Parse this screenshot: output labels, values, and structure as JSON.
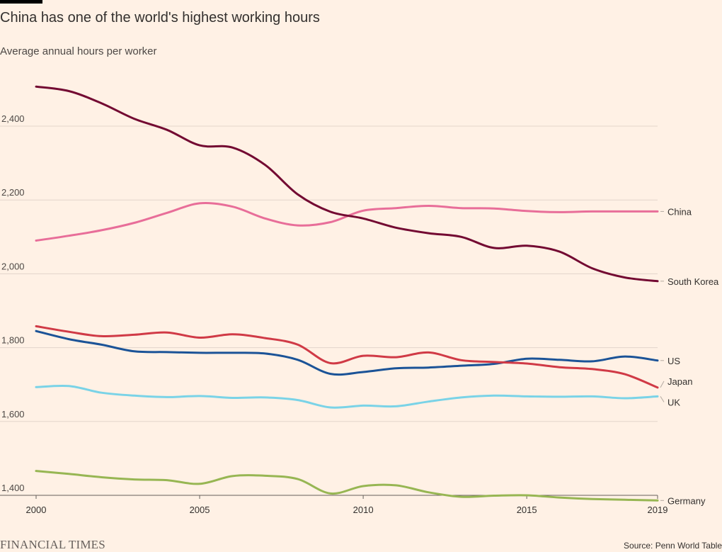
{
  "header": {
    "title": "China has one of the world's highest working hours",
    "subtitle": "Average annual hours per worker"
  },
  "footer": {
    "brand": "FINANCIAL TIMES",
    "source": "Source: Penn World Table"
  },
  "chart_data": {
    "type": "line",
    "title": "China has one of the world's highest working hours",
    "ylabel": "Average annual hours per worker",
    "xlim": [
      2000,
      2019
    ],
    "ylim": [
      1400,
      2510
    ],
    "yticks": [
      1400,
      1600,
      1800,
      2000,
      2200,
      2400
    ],
    "ytick_labels": [
      "1,400",
      "1,600",
      "1,800",
      "2,000",
      "2,200",
      "2,400"
    ],
    "xticks": [
      2000,
      2005,
      2010,
      2015,
      2019
    ],
    "xtick_labels": [
      "2000",
      "2005",
      "2010",
      "2015",
      "2019"
    ],
    "grid": "horizontal",
    "legend": "end-of-line labels",
    "x": [
      2000,
      2001,
      2002,
      2003,
      2004,
      2005,
      2006,
      2007,
      2008,
      2009,
      2010,
      2011,
      2012,
      2013,
      2014,
      2015,
      2016,
      2017,
      2018,
      2019
    ],
    "series": [
      {
        "name": "China",
        "color": "#E86E99",
        "values": [
          2090,
          2103,
          2118,
          2138,
          2165,
          2191,
          2182,
          2150,
          2131,
          2140,
          2171,
          2178,
          2184,
          2178,
          2177,
          2170,
          2167,
          2169,
          2169,
          2169
        ]
      },
      {
        "name": "South Korea",
        "color": "#730A32",
        "values": [
          2507,
          2495,
          2462,
          2420,
          2390,
          2348,
          2342,
          2295,
          2215,
          2168,
          2150,
          2125,
          2110,
          2100,
          2070,
          2076,
          2060,
          2015,
          1990,
          1980
        ]
      },
      {
        "name": "US",
        "color": "#1B5397",
        "values": [
          1845,
          1823,
          1808,
          1790,
          1788,
          1786,
          1786,
          1784,
          1767,
          1729,
          1734,
          1744,
          1746,
          1751,
          1756,
          1770,
          1767,
          1763,
          1776,
          1765
        ]
      },
      {
        "name": "Japan",
        "color": "#D03A46",
        "values": [
          1858,
          1843,
          1831,
          1835,
          1841,
          1827,
          1836,
          1826,
          1808,
          1758,
          1778,
          1774,
          1787,
          1766,
          1761,
          1757,
          1747,
          1742,
          1728,
          1692
        ]
      },
      {
        "name": "UK",
        "color": "#7AD3E7",
        "values": [
          1693,
          1696,
          1678,
          1670,
          1666,
          1669,
          1664,
          1665,
          1658,
          1638,
          1643,
          1641,
          1654,
          1665,
          1670,
          1668,
          1667,
          1668,
          1663,
          1668
        ]
      },
      {
        "name": "Germany",
        "color": "#97B653",
        "values": [
          1466,
          1458,
          1449,
          1443,
          1441,
          1431,
          1452,
          1453,
          1444,
          1405,
          1425,
          1427,
          1408,
          1396,
          1399,
          1400,
          1394,
          1390,
          1388,
          1386
        ]
      }
    ],
    "end_labels": [
      {
        "name": "China",
        "label_value": 2169
      },
      {
        "name": "South Korea",
        "label_value": 1980
      },
      {
        "name": "US",
        "label_value": 1765
      },
      {
        "name": "Japan",
        "label_value": 1692
      },
      {
        "name": "UK",
        "label_value": 1668
      },
      {
        "name": "Germany",
        "label_value": 1386
      }
    ]
  }
}
